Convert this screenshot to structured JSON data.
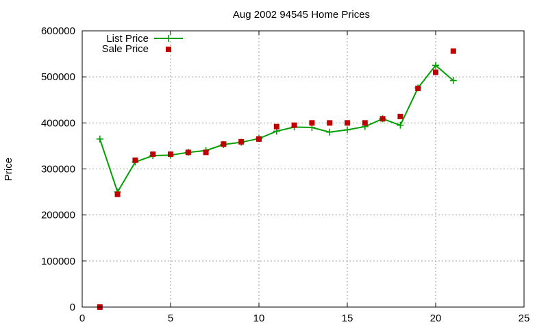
{
  "chart_data": {
    "type": "line",
    "title": "Aug 2002 94545 Home Prices",
    "xlabel": "",
    "ylabel": "Price",
    "xlim": [
      0,
      25
    ],
    "ylim": [
      0,
      600000
    ],
    "xticks": [
      0,
      5,
      10,
      15,
      20,
      25
    ],
    "yticks": [
      0,
      100000,
      200000,
      300000,
      400000,
      500000,
      600000
    ],
    "grid": true,
    "legend_position": "top-left",
    "series": [
      {
        "name": "List Price",
        "style": "linespoints",
        "marker": "plus",
        "color": "#00a000",
        "x": [
          1,
          2,
          3,
          4,
          5,
          6,
          7,
          8,
          9,
          10,
          11,
          12,
          13,
          14,
          15,
          16,
          17,
          18,
          19,
          20,
          21
        ],
        "y": [
          365000,
          250000,
          315000,
          329000,
          330000,
          336000,
          340000,
          353000,
          358000,
          366000,
          382000,
          391000,
          390000,
          380000,
          385000,
          392000,
          409000,
          395000,
          476000,
          525000,
          492000
        ]
      },
      {
        "name": "Sale Price",
        "style": "points",
        "marker": "square",
        "color": "#c00000",
        "x": [
          1,
          2,
          3,
          4,
          5,
          6,
          7,
          8,
          9,
          10,
          11,
          12,
          13,
          14,
          15,
          16,
          17,
          18,
          19,
          20,
          21
        ],
        "y": [
          0,
          245000,
          319000,
          332000,
          332000,
          336000,
          336000,
          354000,
          359000,
          365000,
          392000,
          395000,
          400000,
          400000,
          400000,
          400000,
          409000,
          414000,
          475000,
          510000,
          556000
        ]
      }
    ]
  }
}
